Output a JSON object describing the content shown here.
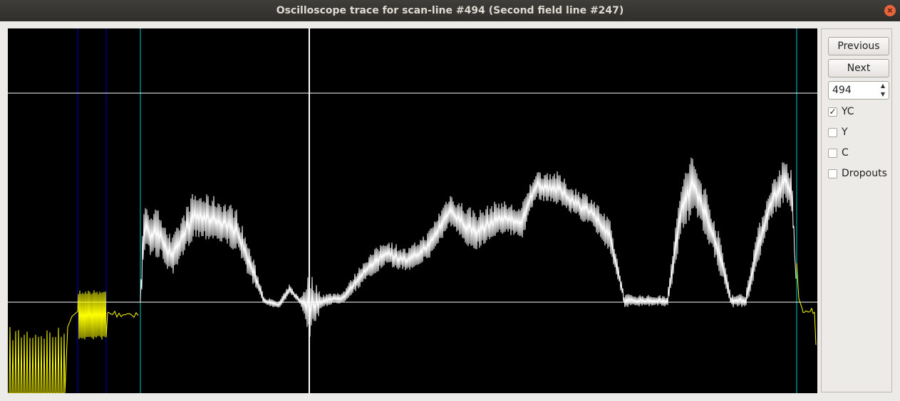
{
  "window": {
    "title": "Oscilloscope trace for scan-line #494 (Second field line #247)",
    "close_glyph": "×"
  },
  "controls": {
    "previous_label": "Previous",
    "next_label": "Next",
    "line_value": "494",
    "spin_up": "▲",
    "spin_down": "▼",
    "checkboxes": [
      {
        "label": "YC",
        "checked": true,
        "mark": "✓"
      },
      {
        "label": "Y",
        "checked": false,
        "mark": ""
      },
      {
        "label": "C",
        "checked": false,
        "mark": ""
      },
      {
        "label": "Dropouts",
        "checked": false,
        "mark": ""
      }
    ]
  },
  "colors": {
    "scope_bg": "#000000",
    "trace_active": "#ffffff",
    "trace_sync": "#ffff00",
    "marker_blue": "#0000c8",
    "marker_cyan": "#00c8c8",
    "level_line": "#ffffff"
  }
}
